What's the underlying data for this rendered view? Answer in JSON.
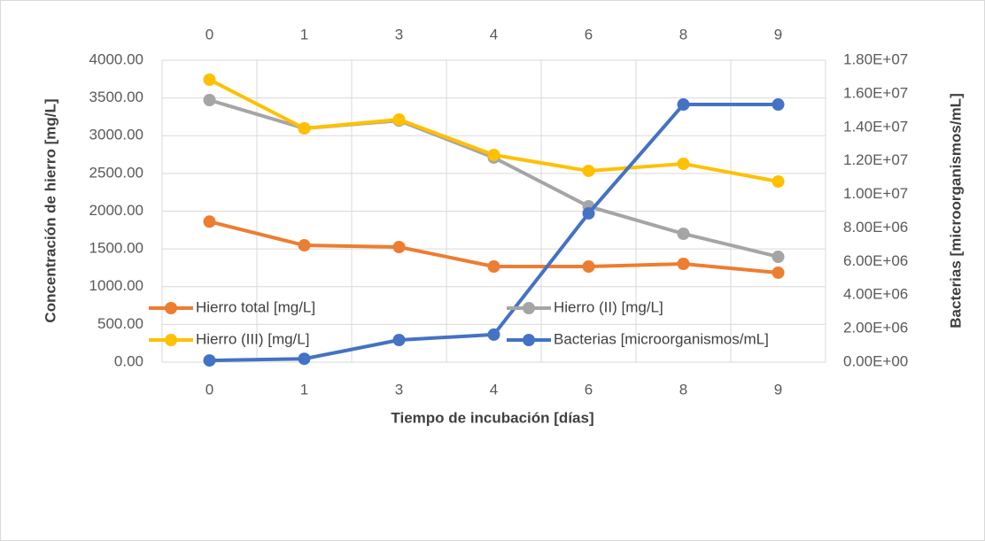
{
  "chart_data": {
    "type": "line",
    "categories": [
      "0",
      "1",
      "3",
      "4",
      "6",
      "8",
      "9"
    ],
    "x_label": "Tiempo de incubación [días]",
    "y_label": "Concentración de hierro [mg/L]",
    "y2_label": "Bacterias [microorganismos/mL]",
    "ylim": [
      0,
      4000
    ],
    "yticks": [
      {
        "value": 0,
        "label": "0.00"
      },
      {
        "value": 500,
        "label": "500.00"
      },
      {
        "value": 1000,
        "label": "1000.00"
      },
      {
        "value": 1500,
        "label": "1500.00"
      },
      {
        "value": 2000,
        "label": "2000.00"
      },
      {
        "value": 2500,
        "label": "2500.00"
      },
      {
        "value": 3000,
        "label": "3000.00"
      },
      {
        "value": 3500,
        "label": "3500.00"
      },
      {
        "value": 4000,
        "label": "4000.00"
      }
    ],
    "y2lim": [
      0,
      18000000
    ],
    "y2ticks": [
      {
        "value": 0,
        "label": "0.00E+00"
      },
      {
        "value": 2000000,
        "label": "2.00E+06"
      },
      {
        "value": 4000000,
        "label": "4.00E+06"
      },
      {
        "value": 6000000,
        "label": "6.00E+06"
      },
      {
        "value": 8000000,
        "label": "8.00E+06"
      },
      {
        "value": 10000000,
        "label": "1.00E+07"
      },
      {
        "value": 12000000,
        "label": "1.20E+07"
      },
      {
        "value": 14000000,
        "label": "1.40E+07"
      },
      {
        "value": 16000000,
        "label": "1.60E+07"
      },
      {
        "value": 18000000,
        "label": "1.80E+07"
      }
    ],
    "grid": true,
    "legend": "bottom",
    "series": [
      {
        "name": "Hierro total [mg/L]",
        "color": "#ed7d31",
        "values": [
          1862,
          1548,
          1525,
          1267,
          1267,
          1302,
          1185
        ]
      },
      {
        "name": "Hierro (II) [mg/L]",
        "color": "#a5a5a5",
        "values": [
          3472,
          3097,
          3200,
          2710,
          2064,
          1701,
          1396
        ]
      },
      {
        "name": "Hierro (III) [mg/L]",
        "color": "#ffc000",
        "values": [
          3742,
          3097,
          3214,
          2745,
          2534,
          2628,
          2393
        ]
      },
      {
        "name": "Bacterias [microorganismos/mL]",
        "color": "#4472c4",
        "axis": "y2",
        "values": [
          100000,
          200000,
          1320000,
          1640000,
          8870000,
          15360000,
          15360000
        ]
      }
    ]
  }
}
